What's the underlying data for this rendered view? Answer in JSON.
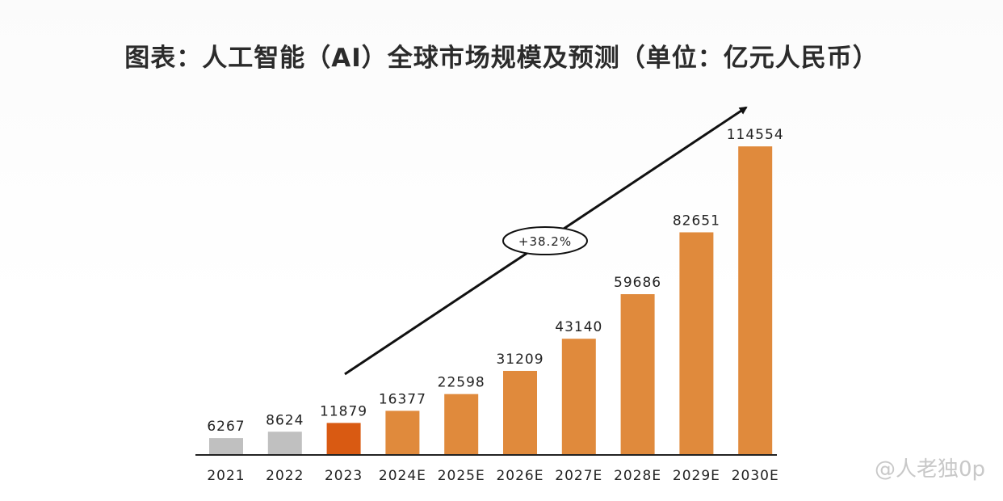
{
  "chart_data": {
    "type": "bar",
    "title": "图表：人工智能（AI）全球市场规模及预测（单位：亿元人民币）",
    "categories": [
      "2021",
      "2022",
      "2023",
      "2024E",
      "2025E",
      "2026E",
      "2027E",
      "2028E",
      "2029E",
      "2030E"
    ],
    "values": [
      6267,
      8624,
      11879,
      16377,
      22598,
      31209,
      43140,
      59686,
      82651,
      114554
    ],
    "bar_colors": [
      "#c0c0c0",
      "#c0c0c0",
      "#d95a12",
      "#e08a3c",
      "#e08a3c",
      "#e08a3c",
      "#e08a3c",
      "#e08a3c",
      "#e08a3c",
      "#e08a3c"
    ],
    "annotation": "+38.2%",
    "ylim": [
      0,
      120000
    ],
    "grid": false,
    "legend": "none",
    "xlabel": "",
    "ylabel": ""
  },
  "watermark": "@人老独0p"
}
